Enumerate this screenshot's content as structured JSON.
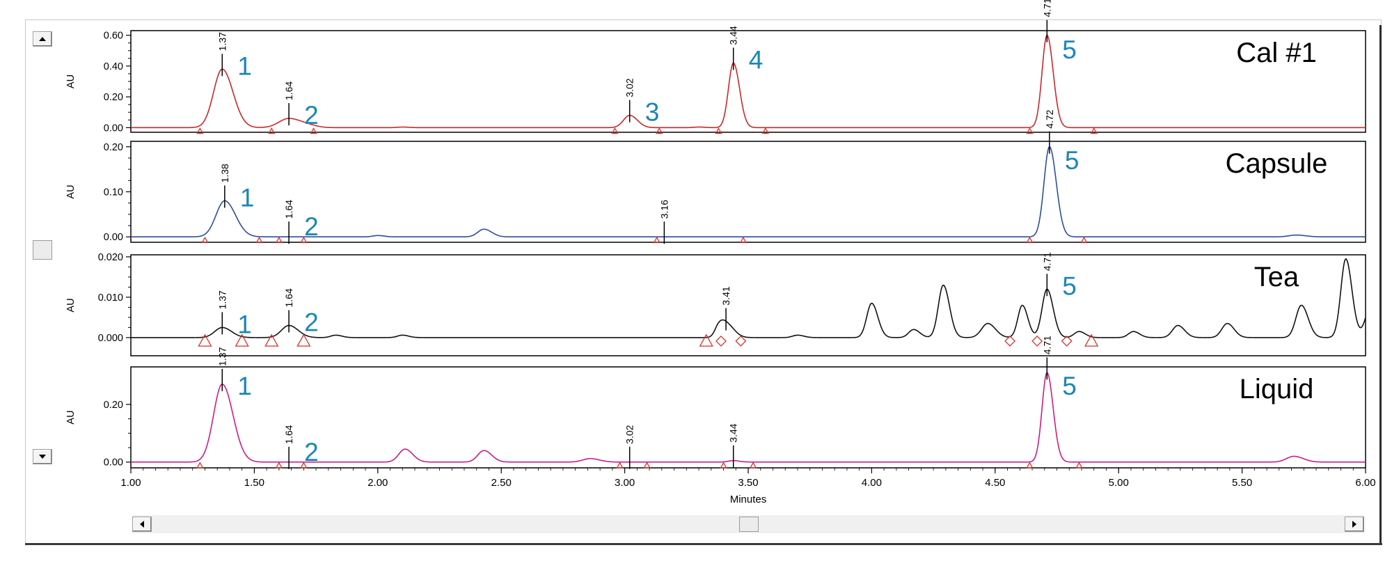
{
  "chart_data": {
    "type": "line",
    "xlabel": "Minutes",
    "xlim": [
      1.0,
      6.0
    ],
    "x_ticks": [
      "1.00",
      "1.50",
      "2.00",
      "2.50",
      "3.00",
      "3.50",
      "4.00",
      "4.50",
      "5.00",
      "5.50",
      "6.00"
    ],
    "x_tick_values": [
      1.0,
      1.5,
      2.0,
      2.5,
      3.0,
      3.5,
      4.0,
      4.5,
      5.0,
      5.5,
      6.0
    ],
    "grid": false,
    "panels": [
      {
        "name": "Cal #1",
        "ylabel": "AU",
        "color": "#c8282a",
        "ylim": [
          -0.03,
          0.63
        ],
        "y_ticks": [
          "0.00",
          "0.20",
          "0.40",
          "0.60"
        ],
        "y_tick_values": [
          0.0,
          0.2,
          0.4,
          0.6
        ],
        "peaks": [
          {
            "rt": 1.37,
            "label": "1.37",
            "height": 0.38,
            "width": 0.035,
            "peak_no": "1"
          },
          {
            "rt": 1.64,
            "label": "1.64",
            "height": 0.06,
            "width": 0.04,
            "peak_no": "2"
          },
          {
            "rt": 3.02,
            "label": "3.02",
            "height": 0.08,
            "width": 0.025,
            "peak_no": "3"
          },
          {
            "rt": 3.44,
            "label": "3.44",
            "height": 0.42,
            "width": 0.02,
            "peak_no": "4"
          },
          {
            "rt": 4.71,
            "label": "4.71",
            "height": 0.6,
            "width": 0.02,
            "peak_no": "5"
          }
        ],
        "minor_peaks": [
          {
            "rt": 1.72,
            "height": 0.01,
            "width": 0.03
          },
          {
            "rt": 2.1,
            "height": 0.004,
            "width": 0.02
          },
          {
            "rt": 3.3,
            "height": 0.004,
            "width": 0.02
          }
        ],
        "markers": [
          {
            "x": 1.28,
            "shape": "triangle"
          },
          {
            "x": 1.57,
            "shape": "triangle"
          },
          {
            "x": 1.74,
            "shape": "triangle"
          },
          {
            "x": 2.96,
            "shape": "triangle"
          },
          {
            "x": 3.14,
            "shape": "triangle"
          },
          {
            "x": 3.38,
            "shape": "triangle"
          },
          {
            "x": 3.57,
            "shape": "triangle"
          },
          {
            "x": 4.64,
            "shape": "triangle"
          },
          {
            "x": 4.9,
            "shape": "triangle"
          }
        ]
      },
      {
        "name": "Capsule",
        "ylabel": "AU",
        "color": "#2c4f96",
        "ylim": [
          -0.012,
          0.212
        ],
        "y_ticks": [
          "0.00",
          "0.10",
          "0.20"
        ],
        "y_tick_values": [
          0.0,
          0.1,
          0.2
        ],
        "peaks": [
          {
            "rt": 1.38,
            "label": "1.38",
            "height": 0.08,
            "width": 0.035,
            "peak_no": "1"
          },
          {
            "rt": 1.64,
            "label": "1.64",
            "height": 0.0,
            "width": 0.02,
            "peak_no": "2"
          },
          {
            "rt": 3.16,
            "label": "3.16",
            "height": 0.0,
            "width": 0.02,
            "peak_no": ""
          },
          {
            "rt": 4.72,
            "label": "4.72",
            "height": 0.2,
            "width": 0.022,
            "peak_no": "5"
          }
        ],
        "minor_peaks": [
          {
            "rt": 2.43,
            "height": 0.017,
            "width": 0.025
          },
          {
            "rt": 2.0,
            "height": 0.003,
            "width": 0.02
          },
          {
            "rt": 5.72,
            "height": 0.004,
            "width": 0.03
          }
        ],
        "markers": [
          {
            "x": 1.3,
            "shape": "triangle"
          },
          {
            "x": 1.52,
            "shape": "triangle"
          },
          {
            "x": 1.6,
            "shape": "triangle"
          },
          {
            "x": 1.7,
            "shape": "triangle"
          },
          {
            "x": 3.13,
            "shape": "triangle"
          },
          {
            "x": 3.48,
            "shape": "triangle"
          },
          {
            "x": 4.64,
            "shape": "triangle"
          },
          {
            "x": 4.86,
            "shape": "triangle"
          }
        ]
      },
      {
        "name": "Tea",
        "ylabel": "AU",
        "color": "#111111",
        "ylim": [
          -0.0045,
          0.0205
        ],
        "y_ticks": [
          "0.000",
          "0.010",
          "0.020"
        ],
        "y_tick_values": [
          0.0,
          0.01,
          0.02
        ],
        "peaks": [
          {
            "rt": 1.37,
            "label": "1.37",
            "height": 0.0025,
            "width": 0.03,
            "peak_no": "1"
          },
          {
            "rt": 1.64,
            "label": "1.64",
            "height": 0.003,
            "width": 0.03,
            "peak_no": "2"
          },
          {
            "rt": 3.41,
            "label": "3.41",
            "height": 0.0035,
            "width": 0.025,
            "peak_no": ""
          },
          {
            "rt": 4.71,
            "label": "4.71",
            "height": 0.012,
            "width": 0.02,
            "peak_no": "5"
          }
        ],
        "minor_peaks": [
          {
            "rt": 1.83,
            "height": 0.0006,
            "width": 0.02
          },
          {
            "rt": 2.1,
            "height": 0.0006,
            "width": 0.02
          },
          {
            "rt": 3.38,
            "height": 0.002,
            "width": 0.015
          },
          {
            "rt": 3.7,
            "height": 0.0006,
            "width": 0.02
          },
          {
            "rt": 4.0,
            "height": 0.0085,
            "width": 0.02
          },
          {
            "rt": 4.17,
            "height": 0.002,
            "width": 0.02
          },
          {
            "rt": 4.29,
            "height": 0.013,
            "width": 0.02
          },
          {
            "rt": 4.47,
            "height": 0.0035,
            "width": 0.025
          },
          {
            "rt": 4.61,
            "height": 0.008,
            "width": 0.018
          },
          {
            "rt": 4.84,
            "height": 0.0015,
            "width": 0.02
          },
          {
            "rt": 5.06,
            "height": 0.0015,
            "width": 0.02
          },
          {
            "rt": 5.24,
            "height": 0.003,
            "width": 0.022
          },
          {
            "rt": 5.44,
            "height": 0.0035,
            "width": 0.022
          },
          {
            "rt": 5.74,
            "height": 0.008,
            "width": 0.022
          },
          {
            "rt": 5.92,
            "height": 0.0195,
            "width": 0.02
          },
          {
            "rt": 6.03,
            "height": 0.01,
            "width": 0.025
          }
        ],
        "markers": [
          {
            "x": 1.3,
            "shape": "triangle"
          },
          {
            "x": 1.45,
            "shape": "triangle"
          },
          {
            "x": 1.57,
            "shape": "triangle"
          },
          {
            "x": 1.7,
            "shape": "triangle"
          },
          {
            "x": 3.33,
            "shape": "triangle"
          },
          {
            "x": 3.39,
            "shape": "diamond"
          },
          {
            "x": 3.47,
            "shape": "diamond"
          },
          {
            "x": 4.56,
            "shape": "diamond"
          },
          {
            "x": 4.67,
            "shape": "diamond"
          },
          {
            "x": 4.79,
            "shape": "diamond"
          },
          {
            "x": 4.89,
            "shape": "triangle"
          }
        ]
      },
      {
        "name": "Liquid",
        "ylabel": "AU",
        "color": "#c71d86",
        "ylim": [
          -0.02,
          0.33
        ],
        "y_ticks": [
          "0.00",
          "0.20"
        ],
        "y_tick_values": [
          0.0,
          0.2
        ],
        "peaks": [
          {
            "rt": 1.37,
            "label": "1.37",
            "height": 0.27,
            "width": 0.035,
            "peak_no": "1"
          },
          {
            "rt": 1.64,
            "label": "1.64",
            "height": 0.0,
            "width": 0.02,
            "peak_no": "2"
          },
          {
            "rt": 3.02,
            "label": "3.02",
            "height": 0.0,
            "width": 0.02,
            "peak_no": ""
          },
          {
            "rt": 3.44,
            "label": "3.44",
            "height": 0.005,
            "width": 0.02,
            "peak_no": ""
          },
          {
            "rt": 4.71,
            "label": "4.71",
            "height": 0.31,
            "width": 0.02,
            "peak_no": "5"
          }
        ],
        "minor_peaks": [
          {
            "rt": 2.11,
            "height": 0.045,
            "width": 0.025
          },
          {
            "rt": 2.43,
            "height": 0.04,
            "width": 0.025
          },
          {
            "rt": 2.86,
            "height": 0.012,
            "width": 0.03
          },
          {
            "rt": 5.71,
            "height": 0.02,
            "width": 0.03
          }
        ],
        "markers": [
          {
            "x": 1.28,
            "shape": "triangle"
          },
          {
            "x": 1.6,
            "shape": "triangle"
          },
          {
            "x": 1.7,
            "shape": "triangle"
          },
          {
            "x": 2.98,
            "shape": "triangle"
          },
          {
            "x": 3.09,
            "shape": "triangle"
          },
          {
            "x": 3.4,
            "shape": "triangle"
          },
          {
            "x": 3.52,
            "shape": "triangle"
          },
          {
            "x": 4.64,
            "shape": "triangle"
          },
          {
            "x": 4.84,
            "shape": "triangle"
          }
        ]
      }
    ]
  },
  "peak_number_color": "#1b86b7",
  "scrollbars": {
    "up_icon": "arrow-up-icon",
    "down_icon": "arrow-down-icon",
    "left_icon": "arrow-left-icon",
    "right_icon": "arrow-right-icon"
  }
}
